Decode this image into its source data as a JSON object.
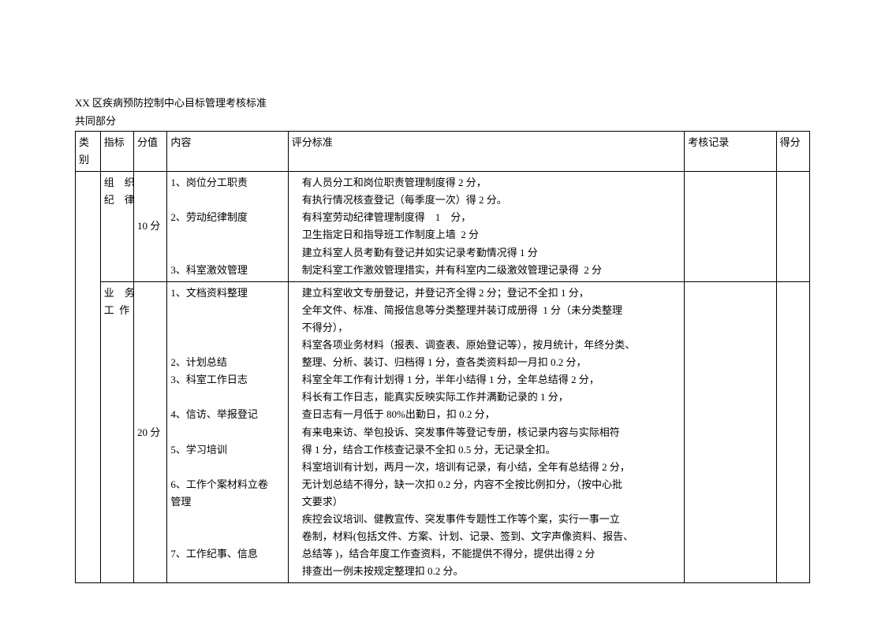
{
  "doc": {
    "title": "XX 区疾病预防控制中心目标管理考核标准",
    "subtitle": "共同部分"
  },
  "table": {
    "headers": {
      "category": "类别",
      "indicator": "指标",
      "score": "分值",
      "content": "内容",
      "criteria": "评分标准",
      "record": "考核记录",
      "points": "得分"
    },
    "rows": [
      {
        "indicator": "组　织\n纪　律",
        "score": "10 分",
        "content": "1、岗位分工职责\n\n2、劳动纪律制度\n\n\n3、科室激效管理",
        "criteria": "　有人员分工和岗位职责管理制度得 2 分，\n　有执行情况核查登记（每季度一次）得 2 分。\n　有科室劳动纪律管理制度得　1　分，\n　卫生指定日和指导班工作制度上墙  2 分\n　建立科室人员考勤有登记并如实记录考勤情况得 1 分\n　制定科室工作激效管理措实，并有科室内二级激效管理记录得  2 分"
      },
      {
        "indicator": "业　务\n工  作",
        "score": "20 分",
        "content": "1、文档资料整理\n\n\n\n2、计划总结\n3、科室工作日志\n\n4、信访、举报登记\n\n5、学习培训\n\n6、工作个案材料立卷\n管理\n\n\n7、工作纪事、信息",
        "criteria": "　建立科室收文专册登记，并登记齐全得 2 分；登记不全扣 1 分，\n　全年文件、标准、简报信息等分类整理并装订成册得  1 分（未分类整理\n　不得分），\n　科室各项业务材料（报表、调查表、原始登记等），按月统计，年终分类、\n　整理、分析、装订、归档得 1 分，查各类资料却一月扣 0.2 分，\n　科室全年工作有计划得 1 分，半年小结得 1 分，全年总结得 2 分，\n　科长有工作日志，能真实反映实际工作并满勤记录的 1 分，\n　查日志有一月低于 80%出勤日，扣 0.2 分，\n　有来电来访、举包投诉、突发事件等登记专册，核记录内容与实际相符\n　得 1 分，结合工作核查记录不全扣 0.5 分，无记录全扣。\n　科室培训有计划，两月一次，培训有记录，有小结，全年有总结得 2 分，\n　无计划总结不得分，缺一次扣 0.2 分，内容不全按比例扣分，（按中心批\n　文要求）\n　疾控会议培训、健教宣传、突发事件专题性工作等个案，实行一事一立\n　卷制，材料(包括文件、方案、计划、记录、签到、文字声像资料、报告、\n　总结等 )，结合年度工作查资料，不能提供不得分，提供出得 2 分\n　排查出一例未按规定整理扣 0.2 分。"
      }
    ]
  }
}
